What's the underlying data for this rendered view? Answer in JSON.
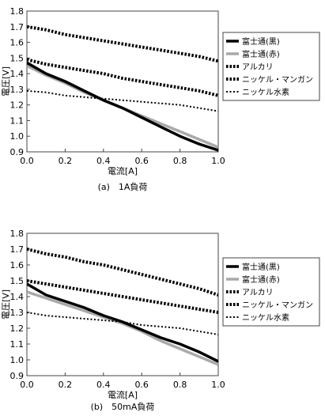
{
  "chart_data": [
    {
      "type": "line",
      "caption": "(a)　1A負荷",
      "xlabel": "電流[A]",
      "ylabel": "電圧[V]",
      "xlim": [
        0.0,
        1.0
      ],
      "ylim": [
        0.9,
        1.8
      ],
      "xticks": [
        "0.0",
        "0.2",
        "0.4",
        "0.6",
        "0.8",
        "1.0"
      ],
      "yticks": [
        "0.9",
        "1.0",
        "1.1",
        "1.2",
        "1.3",
        "1.4",
        "1.5",
        "1.6",
        "1.7",
        "1.8"
      ],
      "grid": false,
      "legend_position": "right",
      "series": [
        {
          "name": "富士通(黒)",
          "color": "#000000",
          "style": "solid-thick",
          "x": [
            0,
            0.1,
            0.2,
            0.3,
            0.4,
            0.5,
            0.6,
            0.7,
            0.8,
            0.9,
            1.0
          ],
          "y": [
            1.47,
            1.4,
            1.35,
            1.29,
            1.23,
            1.18,
            1.12,
            1.06,
            1.0,
            0.95,
            0.91
          ]
        },
        {
          "name": "富士通(赤)",
          "color": "#a9a9a9",
          "style": "solid-thick",
          "x": [
            0,
            0.1,
            0.2,
            0.3,
            0.4,
            0.5,
            0.6,
            0.7,
            0.8,
            0.9,
            1.0
          ],
          "y": [
            1.45,
            1.39,
            1.34,
            1.28,
            1.23,
            1.18,
            1.13,
            1.08,
            1.03,
            0.98,
            0.93
          ]
        },
        {
          "name": "アルカリ",
          "color": "#000000",
          "style": "dotted-thick",
          "x": [
            0,
            0.1,
            0.2,
            0.3,
            0.4,
            0.5,
            0.6,
            0.7,
            0.8,
            0.9,
            1.0
          ],
          "y": [
            1.49,
            1.46,
            1.44,
            1.42,
            1.4,
            1.37,
            1.35,
            1.33,
            1.31,
            1.29,
            1.26
          ]
        },
        {
          "name": "ニッケル・マンガン",
          "color": "#000000",
          "style": "dotted-thick",
          "x": [
            0,
            0.1,
            0.2,
            0.3,
            0.4,
            0.5,
            0.6,
            0.7,
            0.8,
            0.9,
            1.0
          ],
          "y": [
            1.7,
            1.68,
            1.65,
            1.63,
            1.61,
            1.59,
            1.57,
            1.55,
            1.53,
            1.51,
            1.48
          ]
        },
        {
          "name": "ニッケル水素",
          "color": "#000000",
          "style": "dotted-thin",
          "x": [
            0,
            0.1,
            0.2,
            0.3,
            0.4,
            0.5,
            0.6,
            0.7,
            0.8,
            0.9,
            1.0
          ],
          "y": [
            1.29,
            1.28,
            1.26,
            1.25,
            1.24,
            1.23,
            1.22,
            1.21,
            1.2,
            1.18,
            1.16
          ]
        }
      ]
    },
    {
      "type": "line",
      "caption": "(b)　50mA負荷",
      "xlabel": "電流[A]",
      "ylabel": "電圧[V]",
      "xlim": [
        0.0,
        1.0
      ],
      "ylim": [
        0.9,
        1.8
      ],
      "xticks": [
        "0.0",
        "0.2",
        "0.4",
        "0.6",
        "0.8",
        "1.0"
      ],
      "yticks": [
        "0.9",
        "1.0",
        "1.1",
        "1.2",
        "1.3",
        "1.4",
        "1.5",
        "1.6",
        "1.7",
        "1.8"
      ],
      "grid": false,
      "legend_position": "right",
      "series": [
        {
          "name": "富士通(黒)",
          "color": "#000000",
          "style": "solid-thick",
          "x": [
            0,
            0.1,
            0.2,
            0.3,
            0.4,
            0.5,
            0.6,
            0.7,
            0.8,
            0.9,
            1.0
          ],
          "y": [
            1.48,
            1.41,
            1.37,
            1.33,
            1.28,
            1.24,
            1.19,
            1.14,
            1.1,
            1.05,
            0.99
          ]
        },
        {
          "name": "富士通(赤)",
          "color": "#a9a9a9",
          "style": "solid-thick",
          "x": [
            0,
            0.1,
            0.2,
            0.3,
            0.4,
            0.5,
            0.6,
            0.7,
            0.8,
            0.9,
            1.0
          ],
          "y": [
            1.43,
            1.39,
            1.35,
            1.31,
            1.27,
            1.23,
            1.18,
            1.12,
            1.07,
            1.02,
            0.97
          ]
        },
        {
          "name": "アルカリ",
          "color": "#000000",
          "style": "dotted-thick",
          "x": [
            0,
            0.1,
            0.2,
            0.3,
            0.4,
            0.5,
            0.6,
            0.7,
            0.8,
            0.9,
            1.0
          ],
          "y": [
            1.5,
            1.48,
            1.46,
            1.44,
            1.42,
            1.4,
            1.38,
            1.36,
            1.34,
            1.32,
            1.3
          ]
        },
        {
          "name": "ニッケル・マンガン",
          "color": "#000000",
          "style": "dotted-thick",
          "x": [
            0,
            0.1,
            0.2,
            0.3,
            0.4,
            0.5,
            0.6,
            0.7,
            0.8,
            0.9,
            1.0
          ],
          "y": [
            1.7,
            1.67,
            1.65,
            1.62,
            1.6,
            1.57,
            1.54,
            1.51,
            1.48,
            1.45,
            1.41
          ]
        },
        {
          "name": "ニッケル水素",
          "color": "#000000",
          "style": "dotted-thin",
          "x": [
            0,
            0.1,
            0.2,
            0.3,
            0.4,
            0.5,
            0.6,
            0.7,
            0.8,
            0.9,
            1.0
          ],
          "y": [
            1.3,
            1.28,
            1.27,
            1.26,
            1.25,
            1.24,
            1.22,
            1.21,
            1.2,
            1.18,
            1.16
          ]
        }
      ]
    }
  ]
}
